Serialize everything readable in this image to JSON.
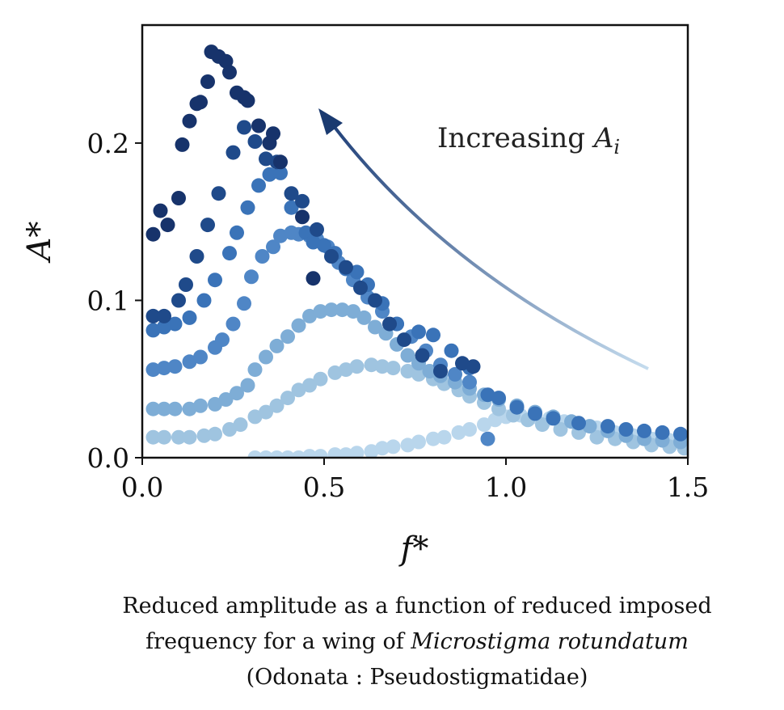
{
  "chart_data": {
    "type": "scatter",
    "xlabel": "f*",
    "ylabel": "A*",
    "xlim": [
      0.0,
      1.5
    ],
    "ylim": [
      0.0,
      0.275
    ],
    "x_ticks": [
      "0.0",
      "0.5",
      "1.0",
      "1.5"
    ],
    "y_ticks": [
      "0.0",
      "0.1",
      "0.2"
    ],
    "grid": false,
    "annotation": {
      "text": "Increasing ",
      "symbol": "A",
      "subscript": "i"
    },
    "series": [
      {
        "color": "#17336b",
        "points": [
          [
            0.03,
            0.142
          ],
          [
            0.05,
            0.157
          ],
          [
            0.07,
            0.148
          ],
          [
            0.1,
            0.165
          ],
          [
            0.11,
            0.199
          ],
          [
            0.13,
            0.214
          ],
          [
            0.15,
            0.225
          ],
          [
            0.16,
            0.226
          ],
          [
            0.18,
            0.239
          ],
          [
            0.19,
            0.258
          ],
          [
            0.21,
            0.255
          ],
          [
            0.23,
            0.252
          ],
          [
            0.24,
            0.245
          ],
          [
            0.26,
            0.232
          ],
          [
            0.28,
            0.229
          ],
          [
            0.29,
            0.227
          ],
          [
            0.32,
            0.211
          ],
          [
            0.35,
            0.2
          ],
          [
            0.36,
            0.206
          ],
          [
            0.38,
            0.188
          ],
          [
            0.44,
            0.153
          ],
          [
            0.47,
            0.114
          ]
        ]
      },
      {
        "color": "#1f4a8a",
        "points": [
          [
            0.03,
            0.09
          ],
          [
            0.06,
            0.09
          ],
          [
            0.1,
            0.1
          ],
          [
            0.12,
            0.11
          ],
          [
            0.15,
            0.128
          ],
          [
            0.18,
            0.148
          ],
          [
            0.21,
            0.168
          ],
          [
            0.25,
            0.194
          ],
          [
            0.28,
            0.21
          ],
          [
            0.31,
            0.201
          ],
          [
            0.34,
            0.19
          ],
          [
            0.37,
            0.188
          ],
          [
            0.41,
            0.168
          ],
          [
            0.44,
            0.163
          ],
          [
            0.48,
            0.145
          ],
          [
            0.52,
            0.128
          ],
          [
            0.56,
            0.121
          ],
          [
            0.6,
            0.108
          ],
          [
            0.64,
            0.1
          ],
          [
            0.68,
            0.085
          ],
          [
            0.72,
            0.075
          ],
          [
            0.77,
            0.065
          ],
          [
            0.82,
            0.055
          ],
          [
            0.88,
            0.06
          ],
          [
            0.91,
            0.058
          ]
        ]
      },
      {
        "color": "#3a73b8",
        "points": [
          [
            0.03,
            0.081
          ],
          [
            0.06,
            0.083
          ],
          [
            0.09,
            0.085
          ],
          [
            0.13,
            0.089
          ],
          [
            0.17,
            0.1
          ],
          [
            0.2,
            0.113
          ],
          [
            0.24,
            0.13
          ],
          [
            0.26,
            0.143
          ],
          [
            0.29,
            0.159
          ],
          [
            0.32,
            0.173
          ],
          [
            0.35,
            0.18
          ],
          [
            0.38,
            0.181
          ],
          [
            0.41,
            0.159
          ],
          [
            0.45,
            0.143
          ],
          [
            0.47,
            0.137
          ],
          [
            0.5,
            0.135
          ],
          [
            0.53,
            0.13
          ],
          [
            0.56,
            0.12
          ],
          [
            0.59,
            0.118
          ],
          [
            0.62,
            0.11
          ],
          [
            0.66,
            0.098
          ],
          [
            0.7,
            0.085
          ],
          [
            0.76,
            0.08
          ],
          [
            0.8,
            0.078
          ],
          [
            0.85,
            0.068
          ],
          [
            0.9,
            0.057
          ],
          [
            0.95,
            0.04
          ],
          [
            0.98,
            0.038
          ],
          [
            1.03,
            0.032
          ],
          [
            1.08,
            0.028
          ],
          [
            1.13,
            0.025
          ],
          [
            1.2,
            0.022
          ],
          [
            1.28,
            0.02
          ],
          [
            1.33,
            0.018
          ],
          [
            1.38,
            0.017
          ],
          [
            1.43,
            0.016
          ],
          [
            1.48,
            0.015
          ]
        ]
      },
      {
        "color": "#4f86c6",
        "points": [
          [
            0.03,
            0.056
          ],
          [
            0.06,
            0.057
          ],
          [
            0.09,
            0.058
          ],
          [
            0.13,
            0.061
          ],
          [
            0.16,
            0.064
          ],
          [
            0.2,
            0.07
          ],
          [
            0.22,
            0.075
          ],
          [
            0.25,
            0.085
          ],
          [
            0.28,
            0.098
          ],
          [
            0.3,
            0.115
          ],
          [
            0.33,
            0.128
          ],
          [
            0.36,
            0.134
          ],
          [
            0.38,
            0.141
          ],
          [
            0.41,
            0.143
          ],
          [
            0.43,
            0.142
          ],
          [
            0.46,
            0.141
          ],
          [
            0.48,
            0.139
          ],
          [
            0.51,
            0.134
          ],
          [
            0.54,
            0.124
          ],
          [
            0.58,
            0.113
          ],
          [
            0.62,
            0.102
          ],
          [
            0.66,
            0.093
          ],
          [
            0.7,
            0.085
          ],
          [
            0.74,
            0.077
          ],
          [
            0.78,
            0.068
          ],
          [
            0.82,
            0.059
          ],
          [
            0.86,
            0.053
          ],
          [
            0.9,
            0.048
          ],
          [
            0.95,
            0.012
          ]
        ]
      },
      {
        "color": "#7eadd6",
        "points": [
          [
            0.03,
            0.031
          ],
          [
            0.06,
            0.031
          ],
          [
            0.09,
            0.031
          ],
          [
            0.13,
            0.031
          ],
          [
            0.16,
            0.033
          ],
          [
            0.2,
            0.034
          ],
          [
            0.23,
            0.037
          ],
          [
            0.26,
            0.041
          ],
          [
            0.29,
            0.046
          ],
          [
            0.31,
            0.056
          ],
          [
            0.34,
            0.064
          ],
          [
            0.37,
            0.071
          ],
          [
            0.4,
            0.077
          ],
          [
            0.43,
            0.084
          ],
          [
            0.46,
            0.09
          ],
          [
            0.49,
            0.093
          ],
          [
            0.52,
            0.094
          ],
          [
            0.55,
            0.094
          ],
          [
            0.58,
            0.093
          ],
          [
            0.61,
            0.089
          ],
          [
            0.64,
            0.083
          ],
          [
            0.67,
            0.079
          ],
          [
            0.7,
            0.072
          ],
          [
            0.73,
            0.065
          ],
          [
            0.76,
            0.06
          ],
          [
            0.79,
            0.055
          ],
          [
            0.82,
            0.052
          ],
          [
            0.86,
            0.048
          ],
          [
            0.9,
            0.044
          ],
          [
            0.94,
            0.04
          ],
          [
            0.98,
            0.037
          ],
          [
            1.03,
            0.033
          ],
          [
            1.08,
            0.029
          ],
          [
            1.13,
            0.026
          ],
          [
            1.18,
            0.023
          ],
          [
            1.23,
            0.02
          ],
          [
            1.28,
            0.017
          ],
          [
            1.33,
            0.014
          ],
          [
            1.38,
            0.012
          ],
          [
            1.43,
            0.011
          ],
          [
            1.48,
            0.01
          ]
        ]
      },
      {
        "color": "#9fc4e0",
        "points": [
          [
            0.03,
            0.013
          ],
          [
            0.06,
            0.013
          ],
          [
            0.1,
            0.013
          ],
          [
            0.13,
            0.013
          ],
          [
            0.17,
            0.014
          ],
          [
            0.2,
            0.015
          ],
          [
            0.24,
            0.018
          ],
          [
            0.27,
            0.021
          ],
          [
            0.31,
            0.026
          ],
          [
            0.34,
            0.029
          ],
          [
            0.37,
            0.033
          ],
          [
            0.4,
            0.038
          ],
          [
            0.43,
            0.043
          ],
          [
            0.46,
            0.046
          ],
          [
            0.49,
            0.05
          ],
          [
            0.53,
            0.054
          ],
          [
            0.56,
            0.056
          ],
          [
            0.59,
            0.058
          ],
          [
            0.63,
            0.059
          ],
          [
            0.66,
            0.058
          ],
          [
            0.69,
            0.057
          ],
          [
            0.73,
            0.055
          ],
          [
            0.76,
            0.053
          ],
          [
            0.8,
            0.05
          ],
          [
            0.83,
            0.047
          ],
          [
            0.87,
            0.043
          ],
          [
            0.9,
            0.039
          ],
          [
            0.94,
            0.035
          ],
          [
            0.98,
            0.031
          ],
          [
            1.02,
            0.027
          ],
          [
            1.06,
            0.024
          ],
          [
            1.1,
            0.021
          ],
          [
            1.15,
            0.018
          ],
          [
            1.2,
            0.016
          ],
          [
            1.25,
            0.013
          ],
          [
            1.3,
            0.012
          ],
          [
            1.35,
            0.01
          ],
          [
            1.4,
            0.008
          ],
          [
            1.45,
            0.007
          ],
          [
            1.49,
            0.006
          ]
        ]
      },
      {
        "color": "#b9d6ec",
        "points": [
          [
            0.31,
            0.0
          ],
          [
            0.34,
            0.0
          ],
          [
            0.37,
            0.0
          ],
          [
            0.4,
            0.0
          ],
          [
            0.43,
            0.0
          ],
          [
            0.46,
            0.001
          ],
          [
            0.49,
            0.001
          ],
          [
            0.53,
            0.002
          ],
          [
            0.56,
            0.002
          ],
          [
            0.59,
            0.003
          ],
          [
            0.63,
            0.004
          ],
          [
            0.66,
            0.006
          ],
          [
            0.69,
            0.007
          ],
          [
            0.73,
            0.008
          ],
          [
            0.76,
            0.01
          ],
          [
            0.8,
            0.012
          ],
          [
            0.83,
            0.013
          ],
          [
            0.87,
            0.016
          ],
          [
            0.9,
            0.018
          ],
          [
            0.94,
            0.021
          ],
          [
            0.97,
            0.024
          ],
          [
            1.0,
            0.026
          ],
          [
            1.04,
            0.027
          ],
          [
            1.08,
            0.026
          ],
          [
            1.12,
            0.025
          ],
          [
            1.16,
            0.023
          ],
          [
            1.2,
            0.021
          ],
          [
            1.25,
            0.019
          ],
          [
            1.3,
            0.016
          ],
          [
            1.35,
            0.014
          ],
          [
            1.4,
            0.012
          ],
          [
            1.45,
            0.011
          ],
          [
            1.49,
            0.01
          ]
        ]
      }
    ]
  },
  "caption": {
    "line1": "Reduced amplitude as a function of reduced imposed",
    "line2_prefix": "frequency for a wing of ",
    "line2_species": "Microstigma rotundatum",
    "line3": "(Odonata : Pseudostigmatidae)"
  }
}
